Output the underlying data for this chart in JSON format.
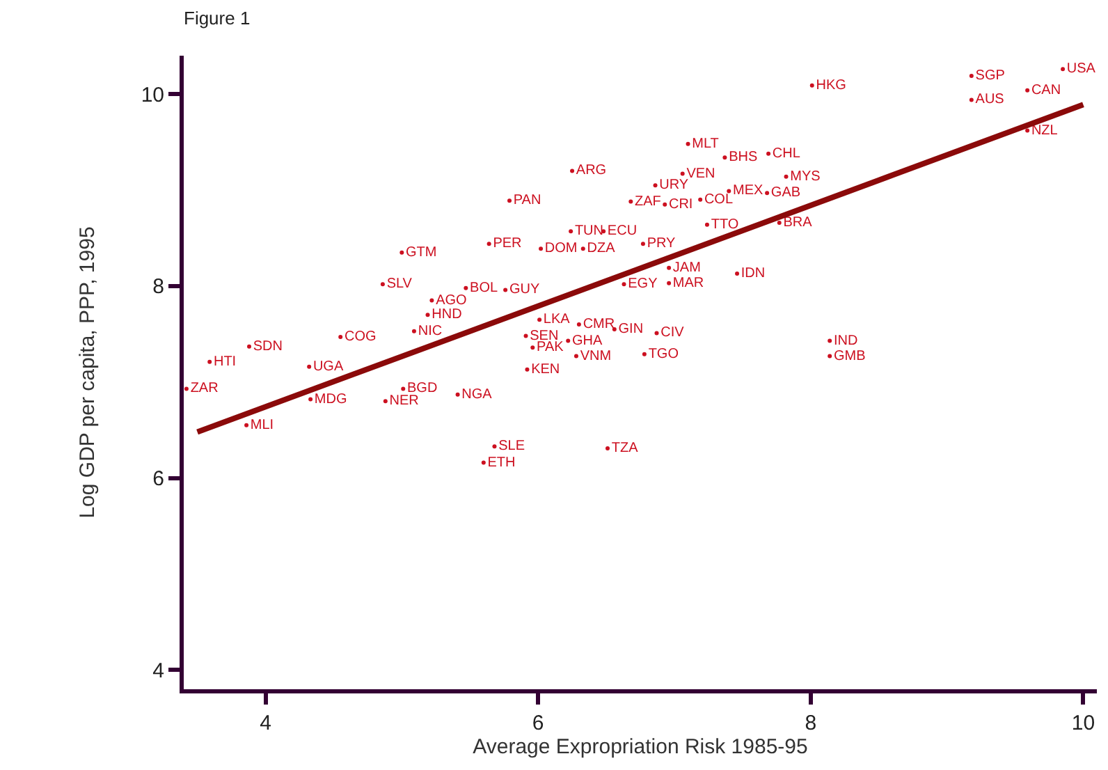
{
  "chart_data": {
    "type": "scatter",
    "title": "Figure 1",
    "xlabel": "Average Expropriation Risk 1985-95",
    "ylabel": "Log GDP per capita, PPP, 1995",
    "xlim": [
      3.4,
      10.1
    ],
    "ylim": [
      3.8,
      10.4
    ],
    "xticks": [
      4,
      6,
      8,
      10
    ],
    "yticks": [
      4,
      6,
      8,
      10
    ],
    "series": [
      {
        "color": "#cc1020",
        "marker": "circle",
        "x": [
          9.85,
          9.18,
          9.18,
          9.59,
          9.59,
          8.01,
          7.1,
          7.37,
          7.69,
          6.25,
          6.86,
          7.06,
          6.68,
          7.4,
          7.68,
          7.82,
          6.93,
          7.19,
          7.24,
          7.77,
          5.79,
          6.24,
          6.48,
          5.64,
          6.02,
          6.33,
          5.0,
          6.77,
          6.96,
          6.96,
          6.63,
          7.46,
          4.86,
          5.47,
          5.76,
          5.22,
          5.19,
          6.01,
          5.09,
          4.55,
          3.88,
          3.59,
          3.42,
          4.32,
          4.33,
          3.86,
          5.01,
          4.88,
          5.41,
          5.91,
          5.96,
          6.22,
          6.3,
          6.56,
          6.28,
          6.87,
          6.78,
          5.92,
          8.14,
          8.14,
          5.68,
          5.6,
          6.51
        ],
        "values": [
          10.26,
          10.19,
          9.94,
          10.04,
          9.62,
          10.09,
          9.48,
          9.34,
          9.38,
          9.2,
          9.05,
          9.17,
          8.88,
          8.99,
          8.97,
          9.14,
          8.85,
          8.9,
          8.64,
          8.66,
          8.89,
          8.57,
          8.57,
          8.44,
          8.39,
          8.39,
          8.35,
          8.44,
          8.19,
          8.03,
          8.02,
          8.13,
          8.02,
          7.98,
          7.96,
          7.85,
          7.7,
          7.65,
          7.53,
          7.47,
          7.37,
          7.21,
          6.93,
          7.16,
          6.82,
          6.55,
          6.93,
          6.8,
          6.87,
          7.48,
          7.36,
          7.43,
          7.6,
          7.55,
          7.27,
          7.51,
          7.29,
          7.13,
          7.43,
          7.27,
          6.33,
          6.16,
          6.31
        ],
        "value_labels": [
          "USA",
          "SGP",
          "AUS",
          "CAN",
          "NZL",
          "HKG",
          "MLT",
          "BHS",
          "CHL",
          "ARG",
          "URY",
          "VEN",
          "ZAF",
          "MEX",
          "GAB",
          "MYS",
          "CRI",
          "COL",
          "TTO",
          "BRA",
          "PAN",
          "TUN",
          "ECU",
          "PER",
          "DOM",
          "DZA",
          "GTM",
          "PRY",
          "JAM",
          "MAR",
          "EGY",
          "IDN",
          "SLV",
          "BOL",
          "GUY",
          "AGO",
          "HND",
          "LKA",
          "NIC",
          "COG",
          "SDN",
          "HTI",
          "ZAR",
          "UGA",
          "MDG",
          "MLI",
          "BGD",
          "NER",
          "NGA",
          "SEN",
          "PAK",
          "GHA",
          "CMR",
          "GIN",
          "VNM",
          "CIV",
          "TGO",
          "KEN",
          "IND",
          "GMB",
          "SLE",
          "ETH",
          "TZA"
        ]
      },
      {
        "type": "line",
        "color": "#8b0a0a",
        "x": [
          3.5,
          10.0
        ],
        "values": [
          6.48,
          9.89
        ]
      }
    ]
  }
}
